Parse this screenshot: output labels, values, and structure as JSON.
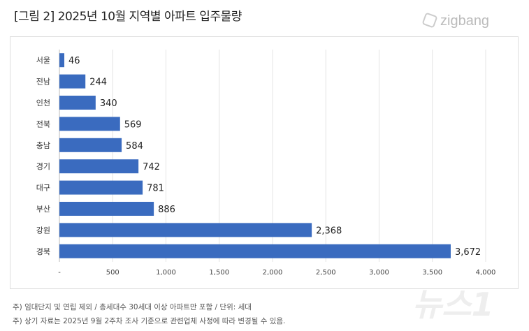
{
  "title": "[그림 2] 2025년 10월 지역별 아파트 입주물량",
  "logo": "zigbang",
  "watermark": "뉴스1",
  "notes": [
    "주) 임대단지 및 연립 제외 / 총세대수 30세대 이상 아파트만 포함 / 단위: 세대",
    "주) 상기 자료는 2025년 9월 2주차 조사 기준으로 관련업체 사정에 따라 변경될 수 있음."
  ],
  "chart_data": {
    "type": "bar",
    "orientation": "horizontal",
    "categories": [
      "서울",
      "전남",
      "인천",
      "전북",
      "충남",
      "경기",
      "대구",
      "부산",
      "강원",
      "경북"
    ],
    "values": [
      46,
      244,
      340,
      569,
      584,
      742,
      781,
      886,
      2368,
      3672
    ],
    "value_labels": [
      "46",
      "244",
      "340",
      "569",
      "584",
      "742",
      "781",
      "886",
      "2,368",
      "3,672"
    ],
    "xlim": [
      0,
      4000
    ],
    "xticks": [
      "-",
      "500",
      "1,000",
      "1,500",
      "2,000",
      "2,500",
      "3,000",
      "3,500",
      "4,000"
    ],
    "grid": true,
    "bar_color": "#3a6bbf"
  }
}
